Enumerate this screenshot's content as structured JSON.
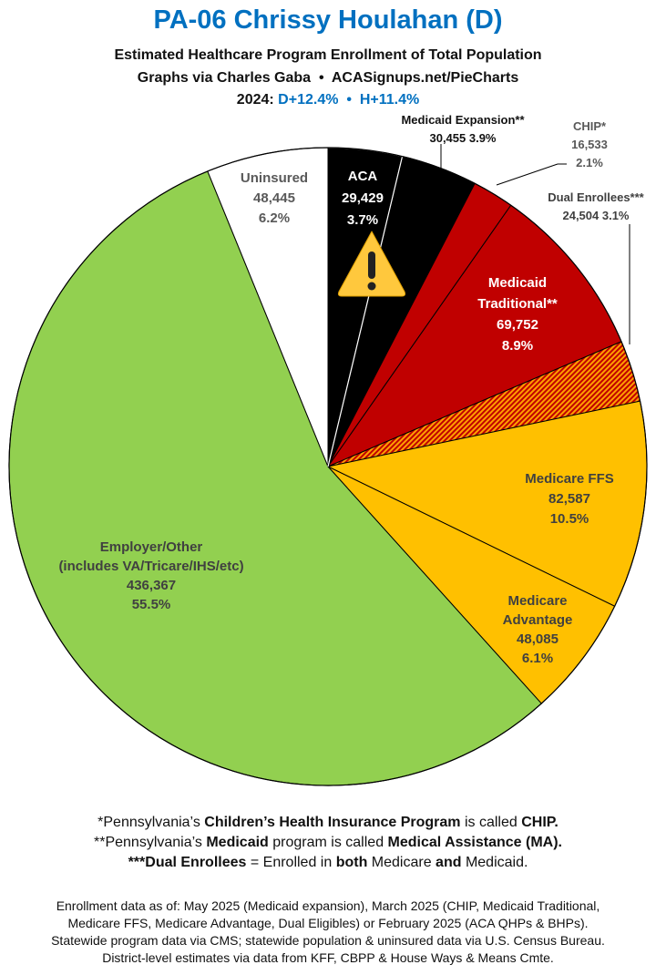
{
  "header": {
    "title": "PA-06 Chrissy Houlahan (D)",
    "subtitle": "Estimated Healthcare Program Enrollment of Total Population",
    "credit": "Graphs via Charles Gaba  •  ACASignups.net/PieCharts",
    "year_label": "2024:",
    "margins": "D+12.4%  •  H+11.4%"
  },
  "chart_data": {
    "type": "pie",
    "slices": [
      {
        "name": "ACA",
        "value": 29429,
        "percent": "3.7%",
        "value_label": "29,429",
        "color": "#000000",
        "text_color": "#ffffff"
      },
      {
        "name": "Medicaid Expansion**",
        "value": 30455,
        "percent": "3.9%",
        "value_label": "30,455",
        "color": "#000000",
        "text_color": "#111111"
      },
      {
        "name": "CHIP*",
        "value": 16533,
        "percent": "2.1%",
        "value_label": "16,533",
        "color": "#c00000",
        "text_color": "#595959"
      },
      {
        "name": "Medicaid Traditional**",
        "value": 69752,
        "percent": "8.9%",
        "value_label": "69,752",
        "color": "#c00000",
        "text_color": "#ffffff"
      },
      {
        "name": "Dual Enrollees***",
        "value": 24504,
        "percent": "3.1%",
        "value_label": "24,504",
        "color": "#e36c09",
        "pattern": "hatched",
        "text_color": "#404040"
      },
      {
        "name": "Medicare FFS",
        "value": 82587,
        "percent": "10.5%",
        "value_label": "82,587",
        "color": "#ffc000",
        "text_color": "#404040"
      },
      {
        "name": "Medicare Advantage",
        "value": 48085,
        "percent": "6.1%",
        "value_label": "48,085",
        "color": "#ffc000",
        "text_color": "#404040"
      },
      {
        "name": "Employer/Other (includes VA/Tricare/IHS/etc)",
        "value": 436367,
        "percent": "55.5%",
        "value_label": "436,367",
        "color": "#92d050",
        "text_color": "#404040"
      },
      {
        "name": "Uninsured",
        "value": 48445,
        "percent": "6.2%",
        "value_label": "48,445",
        "color": "#ffffff",
        "text_color": "#595959"
      }
    ],
    "annotation_icon": "warning-triangle-icon"
  },
  "footnotes": {
    "f1": [
      "*Pennsylvania’s ",
      "Children’s Health Insurance Program",
      " is called ",
      "CHIP."
    ],
    "f2": [
      "**Pennsylvania’s ",
      "Medicaid",
      " program is called ",
      "Medical Assistance (MA)."
    ],
    "f3": [
      "***Dual Enrollees",
      " = Enrolled in ",
      "both",
      " Medicare ",
      "and",
      " Medicaid."
    ]
  },
  "sources": [
    "Enrollment data as of: May 2025 (Medicaid expansion), March 2025 (CHIP, Medicaid Traditional,",
    "Medicare FFS, Medicare Advantage, Dual Eligibles) or February 2025 (ACA QHPs & BHPs).",
    "Statewide program data via CMS; statewide population & uninsured data via U.S. Census Bureau.",
    "District-level estimates via data from KFF, CBPP & House Ways & Means Cmte."
  ]
}
